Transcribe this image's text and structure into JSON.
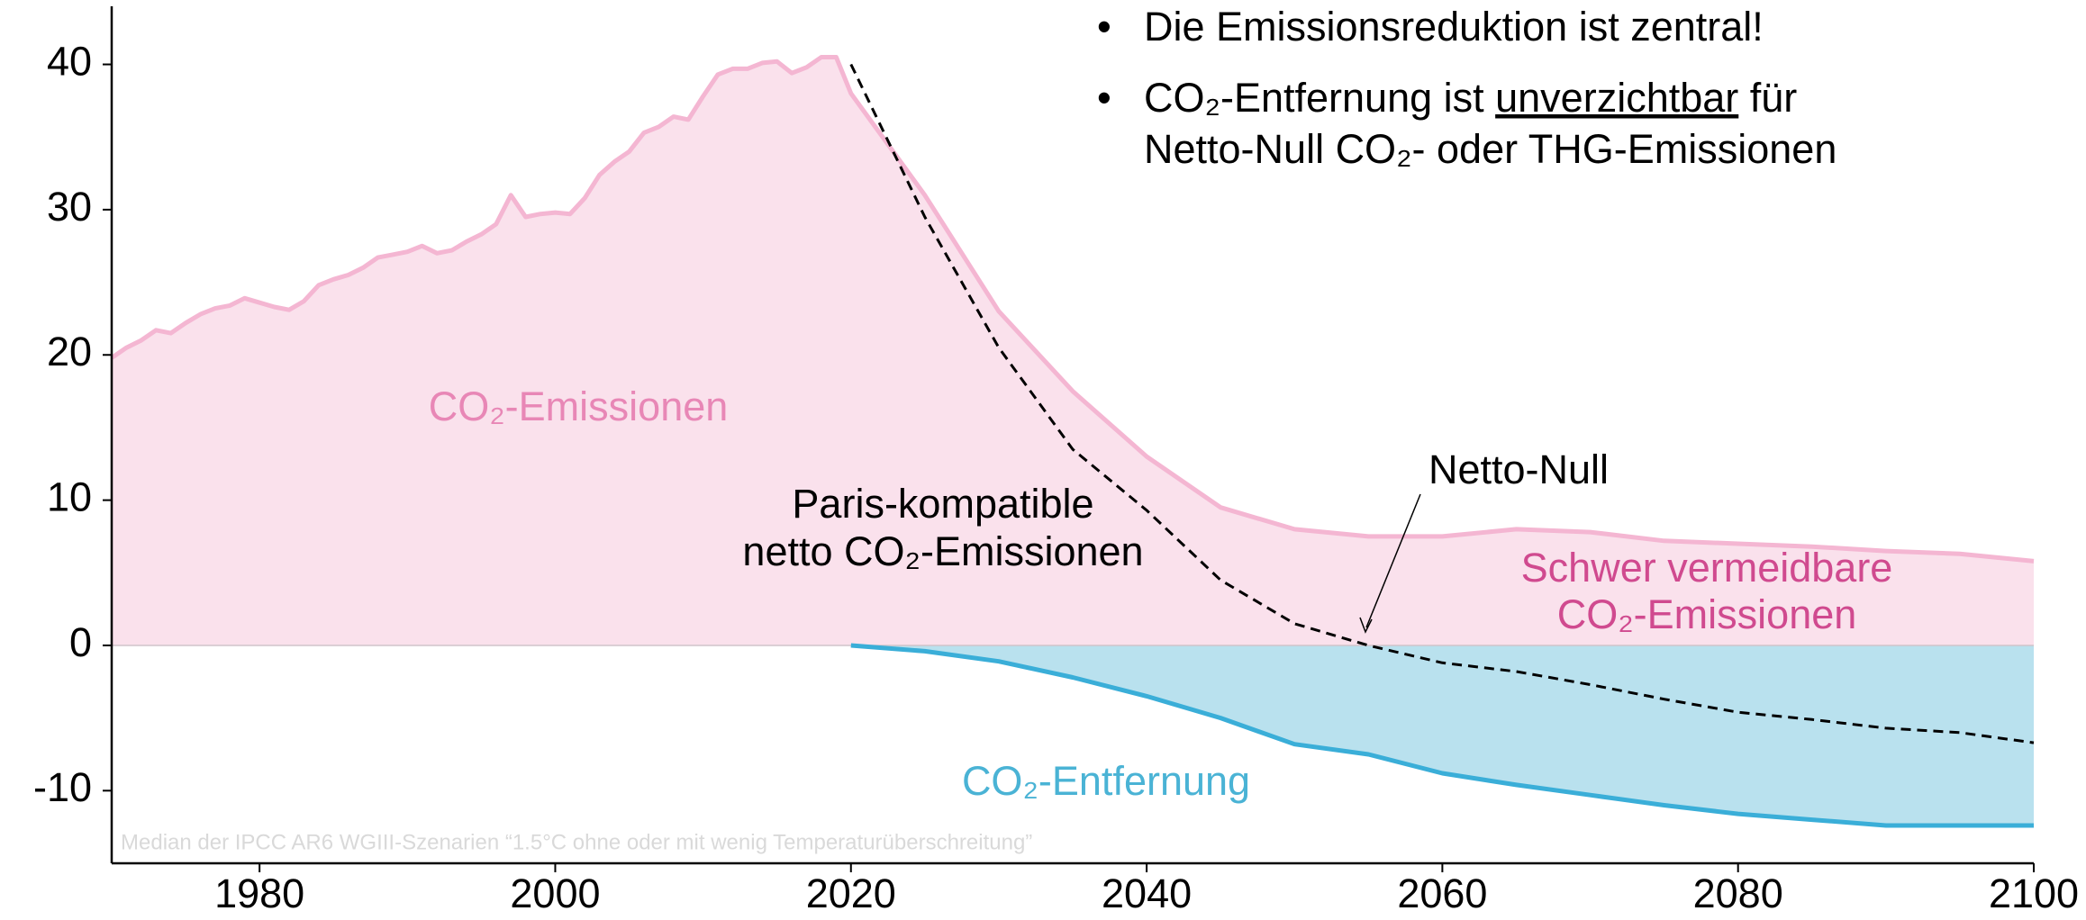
{
  "chart_data": {
    "type": "line",
    "xlim": [
      1970,
      2100
    ],
    "xticks": [
      1980,
      2000,
      2020,
      2040,
      2060,
      2080,
      2100
    ],
    "ylim": [
      -15,
      44
    ],
    "yticks": [
      -10,
      0,
      10,
      20,
      30,
      40
    ],
    "series": [
      {
        "color": "#f4b6d2",
        "fill": "#fae1ec",
        "dash": false,
        "x": [
          1970,
          1971,
          1972,
          1973,
          1974,
          1975,
          1976,
          1977,
          1978,
          1979,
          1980,
          1981,
          1982,
          1983,
          1984,
          1985,
          1986,
          1987,
          1988,
          1989,
          1990,
          1991,
          1992,
          1993,
          1994,
          1995,
          1996,
          1997,
          1998,
          1999,
          2000,
          2001,
          2002,
          2003,
          2004,
          2005,
          2006,
          2007,
          2008,
          2009,
          2010,
          2011,
          2012,
          2013,
          2014,
          2015,
          2016,
          2017,
          2018,
          2019,
          2020,
          2025,
          2030,
          2035,
          2040,
          2045,
          2050,
          2055,
          2060,
          2065,
          2070,
          2075,
          2080,
          2085,
          2090,
          2095,
          2100
        ],
        "values": [
          19.8,
          20.5,
          21.0,
          21.7,
          21.5,
          22.2,
          22.8,
          23.2,
          23.4,
          23.9,
          23.6,
          23.3,
          23.1,
          23.7,
          24.8,
          25.2,
          25.5,
          26.0,
          26.7,
          26.9,
          27.1,
          27.5,
          27.0,
          27.2,
          27.8,
          28.3,
          29.0,
          31.0,
          29.5,
          29.7,
          29.8,
          29.7,
          30.8,
          32.4,
          33.3,
          34.0,
          35.3,
          35.7,
          36.4,
          36.2,
          37.8,
          39.3,
          39.7,
          39.7,
          40.1,
          40.2,
          39.4,
          39.8,
          40.5,
          40.5,
          38.0,
          31.0,
          23.0,
          17.5,
          13.0,
          9.5,
          8.0,
          7.5,
          7.5,
          8.0,
          7.8,
          7.2,
          7.0,
          6.8,
          6.5,
          6.3,
          5.8
        ]
      },
      {
        "color": "#3aaed8",
        "fill": "#b9e1ee",
        "dash": false,
        "x": [
          2020,
          2025,
          2030,
          2035,
          2040,
          2045,
          2050,
          2055,
          2060,
          2065,
          2070,
          2075,
          2080,
          2085,
          2090,
          2095,
          2100
        ],
        "values": [
          0,
          -0.4,
          -1.1,
          -2.2,
          -3.5,
          -5.0,
          -6.8,
          -7.5,
          -8.8,
          -9.6,
          -10.3,
          -11.0,
          -11.6,
          -12.0,
          -12.4,
          -12.4,
          -12.4
        ]
      },
      {
        "color": "#000000",
        "fill": null,
        "dash": true,
        "x": [
          2020,
          2025,
          2030,
          2035,
          2040,
          2045,
          2050,
          2055,
          2060,
          2065,
          2070,
          2075,
          2080,
          2085,
          2090,
          2095,
          2100
        ],
        "values": [
          40,
          29.5,
          20.5,
          13.5,
          9.3,
          4.5,
          1.5,
          0,
          -1.2,
          -1.8,
          -2.7,
          -3.7,
          -4.6,
          -5.1,
          -5.7,
          -6.0,
          -6.7
        ]
      }
    ],
    "bullets": [
      "Die Emissionsreduktion ist zentral!",
      [
        "CO₂-Entfernung ist ",
        "unverzichtbar",
        " für"
      ],
      "Netto-Null CO₂- oder THG-Emissionen"
    ],
    "annotations": {
      "emissions": "CO₂-Emissionen",
      "paris": [
        "Paris-kompatible",
        "netto CO₂-Emissionen"
      ],
      "net_zero": "Netto-Null",
      "residual": [
        "Schwer vermeidbare",
        "CO₂-Emissionen"
      ],
      "removal": "CO₂-Entfernung",
      "source": "Median der IPCC AR6 WGIII-Szenarien “1.5°C ohne oder mit wenig Temperaturüberschreitung”"
    }
  }
}
